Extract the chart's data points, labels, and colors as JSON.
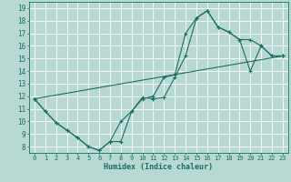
{
  "xlabel": "Humidex (Indice chaleur)",
  "xlim": [
    -0.5,
    23.5
  ],
  "ylim": [
    7.5,
    19.5
  ],
  "xticks": [
    0,
    1,
    2,
    3,
    4,
    5,
    6,
    7,
    8,
    9,
    10,
    11,
    12,
    13,
    14,
    15,
    16,
    17,
    18,
    19,
    20,
    21,
    22,
    23
  ],
  "yticks": [
    8,
    9,
    10,
    11,
    12,
    13,
    14,
    15,
    16,
    17,
    18,
    19
  ],
  "background_color": "#b8d8d4",
  "grid_color": "#ffffff",
  "line_color": "#1a7060",
  "series1_x": [
    0,
    1,
    2,
    3,
    4,
    5,
    6,
    7,
    8,
    9,
    10,
    11,
    12,
    13,
    14,
    15,
    16,
    17,
    18,
    19,
    20,
    21,
    22,
    23
  ],
  "series1_y": [
    11.8,
    10.8,
    9.9,
    9.3,
    8.7,
    8.0,
    7.7,
    8.4,
    10.0,
    10.8,
    11.8,
    12.0,
    13.5,
    13.7,
    17.0,
    18.2,
    18.8,
    17.5,
    17.1,
    16.5,
    16.5,
    16.0,
    15.2,
    15.2
  ],
  "series2_x": [
    0,
    1,
    2,
    3,
    4,
    5,
    6,
    7,
    8,
    9,
    10,
    11,
    12,
    13,
    14,
    15,
    16,
    17,
    18,
    19,
    20,
    21,
    22,
    23
  ],
  "series2_y": [
    11.8,
    10.8,
    9.9,
    9.3,
    8.7,
    8.0,
    7.7,
    8.4,
    8.4,
    10.8,
    11.9,
    11.8,
    11.9,
    13.5,
    15.2,
    18.2,
    18.8,
    17.5,
    17.1,
    16.5,
    14.0,
    16.0,
    15.2,
    15.2
  ],
  "series3_x": [
    0,
    23
  ],
  "series3_y": [
    11.8,
    15.2
  ]
}
